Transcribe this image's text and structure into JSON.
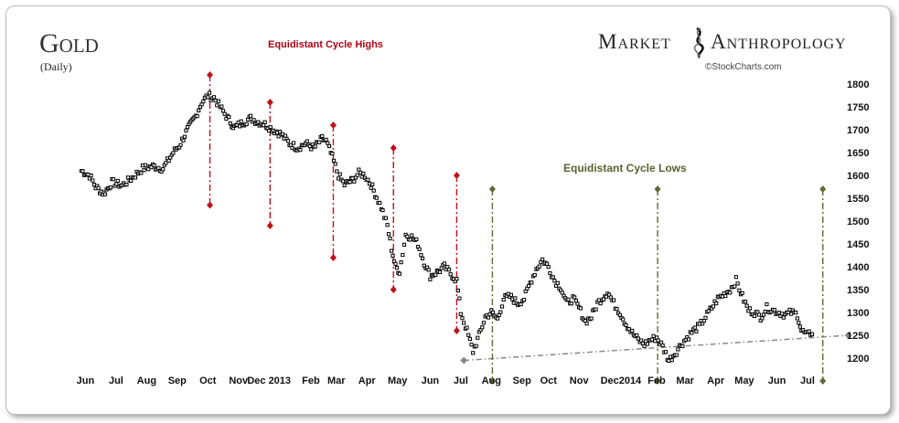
{
  "title": "Gold",
  "subtitle": "(Daily)",
  "brand": {
    "left": "Market",
    "right": "Anthropology",
    "icon": "dna-helix-icon",
    "credit": "©StockCharts.com"
  },
  "chart_data": {
    "type": "scatter",
    "title": "Gold",
    "subtitle": "(Daily)",
    "ylim": [
      1175,
      1810
    ],
    "y_ticks": [
      1800,
      1750,
      1700,
      1650,
      1600,
      1550,
      1500,
      1450,
      1400,
      1350,
      1300,
      1250,
      1200
    ],
    "x_range_days": [
      0,
      415
    ],
    "x_ticks": [
      {
        "label": "Jun",
        "day": 4
      },
      {
        "label": "Jul",
        "day": 34
      },
      {
        "label": "Aug",
        "day": 64
      },
      {
        "label": "Sep",
        "day": 94
      },
      {
        "label": "Oct",
        "day": 124
      },
      {
        "label": "Nov",
        "day": 154
      },
      {
        "label": "Dec 2013",
        "day": 184
      },
      {
        "label": "Feb",
        "day": 225
      },
      {
        "label": "Mar",
        "day": 250
      },
      {
        "label": "Apr",
        "day": 280
      },
      {
        "label": "May",
        "day": 310
      },
      {
        "label": "Jun",
        "day": 342
      },
      {
        "label": "Jul",
        "day": 372
      },
      {
        "label": "Aug",
        "day": 402
      },
      {
        "label": "Sep",
        "day": 432
      },
      {
        "label": "Oct",
        "day": 458
      },
      {
        "label": "Nov",
        "day": 488
      },
      {
        "label": "Dec",
        "day": 518
      },
      {
        "label": "2014",
        "day": 538
      },
      {
        "label": "Feb",
        "day": 564
      },
      {
        "label": "Mar",
        "day": 592
      },
      {
        "label": "Apr",
        "day": 622
      },
      {
        "label": "May",
        "day": 650
      },
      {
        "label": "Jun",
        "day": 682
      },
      {
        "label": "Jul",
        "day": 712
      }
    ],
    "price_path": [
      [
        0,
        1610
      ],
      [
        8,
        1600
      ],
      [
        14,
        1575
      ],
      [
        22,
        1560
      ],
      [
        30,
        1585
      ],
      [
        40,
        1578
      ],
      [
        50,
        1595
      ],
      [
        60,
        1615
      ],
      [
        70,
        1620
      ],
      [
        80,
        1615
      ],
      [
        90,
        1650
      ],
      [
        96,
        1665
      ],
      [
        104,
        1700
      ],
      [
        112,
        1730
      ],
      [
        118,
        1760
      ],
      [
        124,
        1775
      ],
      [
        130,
        1770
      ],
      [
        136,
        1750
      ],
      [
        142,
        1730
      ],
      [
        150,
        1705
      ],
      [
        158,
        1715
      ],
      [
        166,
        1725
      ],
      [
        172,
        1718
      ],
      [
        180,
        1712
      ],
      [
        188,
        1700
      ],
      [
        196,
        1690
      ],
      [
        204,
        1670
      ],
      [
        212,
        1660
      ],
      [
        220,
        1670
      ],
      [
        228,
        1660
      ],
      [
        236,
        1680
      ],
      [
        240,
        1675
      ],
      [
        246,
        1640
      ],
      [
        252,
        1600
      ],
      [
        258,
        1580
      ],
      [
        266,
        1590
      ],
      [
        272,
        1605
      ],
      [
        278,
        1600
      ],
      [
        284,
        1580
      ],
      [
        288,
        1560
      ],
      [
        294,
        1530
      ],
      [
        300,
        1490
      ],
      [
        304,
        1440
      ],
      [
        308,
        1400
      ],
      [
        312,
        1390
      ],
      [
        318,
        1470
      ],
      [
        324,
        1465
      ],
      [
        330,
        1450
      ],
      [
        336,
        1410
      ],
      [
        342,
        1380
      ],
      [
        350,
        1390
      ],
      [
        356,
        1400
      ],
      [
        362,
        1385
      ],
      [
        368,
        1370
      ],
      [
        372,
        1300
      ],
      [
        378,
        1260
      ],
      [
        384,
        1215
      ],
      [
        390,
        1250
      ],
      [
        396,
        1290
      ],
      [
        402,
        1300
      ],
      [
        408,
        1285
      ],
      [
        414,
        1330
      ],
      [
        420,
        1335
      ],
      [
        428,
        1320
      ],
      [
        434,
        1330
      ],
      [
        440,
        1365
      ],
      [
        446,
        1395
      ],
      [
        452,
        1415
      ],
      [
        458,
        1400
      ],
      [
        464,
        1370
      ],
      [
        470,
        1355
      ],
      [
        476,
        1320
      ],
      [
        482,
        1330
      ],
      [
        488,
        1310
      ],
      [
        494,
        1280
      ],
      [
        500,
        1290
      ],
      [
        506,
        1320
      ],
      [
        512,
        1335
      ],
      [
        516,
        1345
      ],
      [
        522,
        1320
      ],
      [
        528,
        1300
      ],
      [
        534,
        1275
      ],
      [
        540,
        1255
      ],
      [
        546,
        1240
      ],
      [
        552,
        1230
      ],
      [
        558,
        1240
      ],
      [
        564,
        1245
      ],
      [
        570,
        1225
      ],
      [
        576,
        1195
      ],
      [
        582,
        1210
      ],
      [
        588,
        1230
      ],
      [
        594,
        1245
      ],
      [
        600,
        1260
      ],
      [
        606,
        1270
      ],
      [
        612,
        1290
      ],
      [
        618,
        1310
      ],
      [
        624,
        1330
      ],
      [
        630,
        1340
      ],
      [
        636,
        1350
      ],
      [
        642,
        1370
      ],
      [
        648,
        1335
      ],
      [
        654,
        1305
      ],
      [
        660,
        1300
      ],
      [
        666,
        1290
      ],
      [
        672,
        1310
      ],
      [
        678,
        1305
      ],
      [
        684,
        1300
      ],
      [
        690,
        1295
      ],
      [
        696,
        1300
      ],
      [
        702,
        1295
      ],
      [
        706,
        1260
      ],
      [
        712,
        1250
      ],
      [
        718,
        1260
      ]
    ],
    "cycle_highs": {
      "label": "Equidistant Cycle Highs",
      "color": "#c0111b",
      "lines": [
        {
          "day": 126,
          "top": 1820,
          "bottom": 1535
        },
        {
          "day": 185,
          "top": 1760,
          "bottom": 1490
        },
        {
          "day": 247,
          "top": 1710,
          "bottom": 1420
        },
        {
          "day": 306,
          "top": 1660,
          "bottom": 1350
        },
        {
          "day": 368,
          "top": 1600,
          "bottom": 1260
        }
      ]
    },
    "cycle_lows": {
      "label": "Equidistant Cycle Lows",
      "color": "#5f6b33",
      "lines": [
        {
          "day": 403,
          "top": 1570,
          "bottom": 1150
        },
        {
          "day": 565,
          "top": 1570,
          "bottom": 1150
        },
        {
          "day": 727,
          "top": 1570,
          "bottom": 1150
        }
      ]
    },
    "trendline": {
      "color": "#8a8a8a",
      "from": {
        "day": 375,
        "value": 1195
      },
      "to": {
        "day": 752,
        "value": 1250
      }
    },
    "grid": false,
    "legend": "none"
  }
}
